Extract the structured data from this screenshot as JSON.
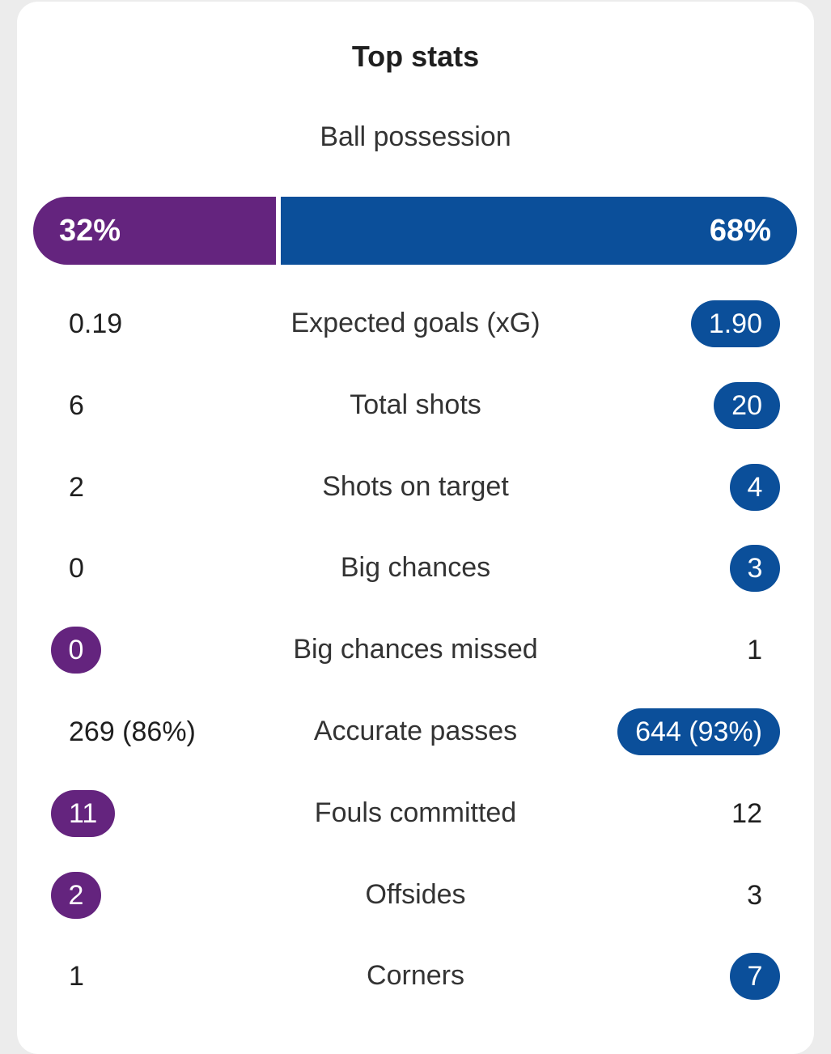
{
  "card": {
    "title": "Top stats"
  },
  "colors": {
    "home": "#64247e",
    "away": "#0b4f9a"
  },
  "possession": {
    "label": "Ball possession",
    "home": "32%",
    "away": "68%",
    "home_fraction": 0.32,
    "away_fraction": 0.68
  },
  "stats": [
    {
      "label": "Expected goals (xG)",
      "home": "0.19",
      "away": "1.90",
      "leader": "away"
    },
    {
      "label": "Total shots",
      "home": "6",
      "away": "20",
      "leader": "away"
    },
    {
      "label": "Shots on target",
      "home": "2",
      "away": "4",
      "leader": "away"
    },
    {
      "label": "Big chances",
      "home": "0",
      "away": "3",
      "leader": "away"
    },
    {
      "label": "Big chances missed",
      "home": "0",
      "away": "1",
      "leader": "home"
    },
    {
      "label": "Accurate passes",
      "home": "269 (86%)",
      "away": "644 (93%)",
      "leader": "away"
    },
    {
      "label": "Fouls committed",
      "home": "11",
      "away": "12",
      "leader": "home"
    },
    {
      "label": "Offsides",
      "home": "2",
      "away": "3",
      "leader": "home"
    },
    {
      "label": "Corners",
      "home": "1",
      "away": "7",
      "leader": "away"
    }
  ]
}
